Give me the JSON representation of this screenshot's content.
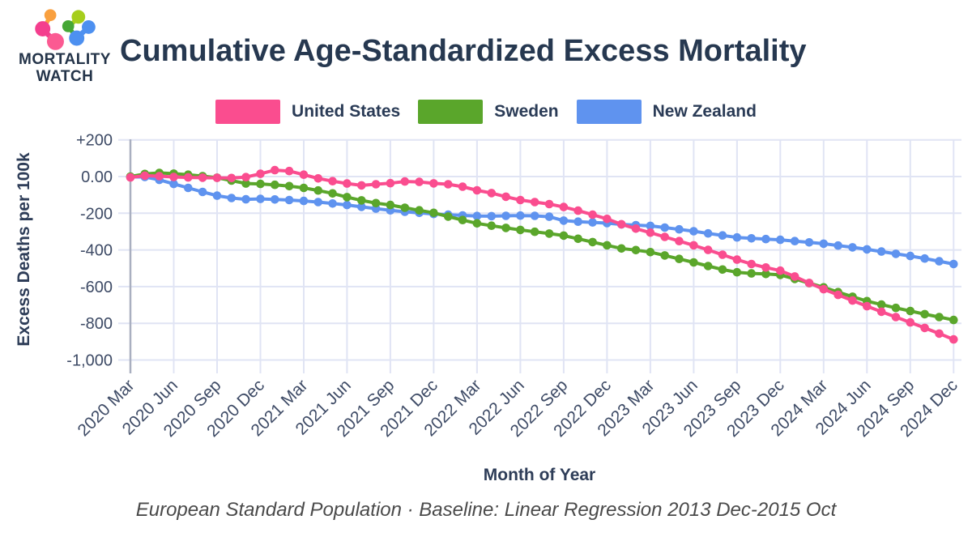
{
  "logo": {
    "line1": "MORTALITY",
    "line2": "WATCH"
  },
  "header": {
    "title": "Cumulative Age-Standardized Excess Mortality"
  },
  "footer": {
    "note": "European Standard Population · Baseline: Linear Regression 2013 Dec-2015 Oct"
  },
  "chart_data": {
    "type": "line",
    "title": "Cumulative Age-Standardized Excess Mortality",
    "xlabel": "Month of Year",
    "ylabel": "Excess Deaths per 100k",
    "ylim": [
      -1000,
      200
    ],
    "grid": true,
    "legend_position": "top",
    "tick_every": 3,
    "ytick_values": [
      200,
      0,
      -200,
      -400,
      -600,
      -800,
      -1000
    ],
    "ytick_labels": [
      "+200",
      "0.00",
      "-200",
      "-400",
      "-600",
      "-800",
      "-1,000"
    ],
    "grid_color": "#E0E4F4",
    "axis_color": "#A9AFC0",
    "tick_color": "#3E4B66",
    "axis_title_color": "#2E3D58",
    "x": [
      "2020 Mar",
      "2020 Apr",
      "2020 May",
      "2020 Jun",
      "2020 Jul",
      "2020 Aug",
      "2020 Sep",
      "2020 Oct",
      "2020 Nov",
      "2020 Dec",
      "2021 Jan",
      "2021 Feb",
      "2021 Mar",
      "2021 Apr",
      "2021 May",
      "2021 Jun",
      "2021 Jul",
      "2021 Aug",
      "2021 Sep",
      "2021 Oct",
      "2021 Nov",
      "2021 Dec",
      "2022 Jan",
      "2022 Feb",
      "2022 Mar",
      "2022 Apr",
      "2022 May",
      "2022 Jun",
      "2022 Jul",
      "2022 Aug",
      "2022 Sep",
      "2022 Oct",
      "2022 Nov",
      "2022 Dec",
      "2023 Jan",
      "2023 Feb",
      "2023 Mar",
      "2023 Apr",
      "2023 May",
      "2023 Jun",
      "2023 Jul",
      "2023 Aug",
      "2023 Sep",
      "2023 Oct",
      "2023 Nov",
      "2023 Dec",
      "2024 Jan",
      "2024 Feb",
      "2024 Mar",
      "2024 Apr",
      "2024 May",
      "2024 Jun",
      "2024 Jul",
      "2024 Aug",
      "2024 Sep",
      "2024 Oct",
      "2024 Nov",
      "2024 Dec"
    ],
    "series": [
      {
        "name": "United States",
        "color": "#FA4D8F",
        "values": [
          -5,
          5,
          2,
          -2,
          -5,
          -6,
          -7,
          -8,
          -3,
          15,
          35,
          30,
          10,
          -10,
          -25,
          -38,
          -48,
          -42,
          -36,
          -27,
          -29,
          -37,
          -42,
          -55,
          -75,
          -90,
          -110,
          -128,
          -139,
          -150,
          -166,
          -186,
          -208,
          -231,
          -260,
          -284,
          -306,
          -329,
          -352,
          -375,
          -400,
          -426,
          -453,
          -477,
          -496,
          -513,
          -545,
          -580,
          -614,
          -645,
          -676,
          -707,
          -737,
          -766,
          -795,
          -825,
          -856,
          -888
        ]
      },
      {
        "name": "Sweden",
        "color": "#5AA62B",
        "values": [
          0,
          14,
          20,
          16,
          10,
          2,
          -6,
          -22,
          -38,
          -40,
          -45,
          -52,
          -62,
          -76,
          -92,
          -112,
          -130,
          -145,
          -155,
          -170,
          -184,
          -198,
          -218,
          -237,
          -255,
          -268,
          -280,
          -291,
          -301,
          -311,
          -322,
          -339,
          -357,
          -375,
          -392,
          -401,
          -412,
          -430,
          -449,
          -468,
          -488,
          -507,
          -522,
          -528,
          -531,
          -536,
          -558,
          -581,
          -604,
          -630,
          -655,
          -679,
          -698,
          -716,
          -733,
          -750,
          -766,
          -782
        ]
      },
      {
        "name": "New Zealand",
        "color": "#5F93EF",
        "values": [
          -2,
          -2,
          -18,
          -40,
          -62,
          -84,
          -104,
          -117,
          -124,
          -122,
          -125,
          -128,
          -133,
          -139,
          -147,
          -155,
          -165,
          -175,
          -184,
          -192,
          -198,
          -204,
          -208,
          -212,
          -215,
          -216,
          -214,
          -213,
          -214,
          -219,
          -240,
          -246,
          -250,
          -254,
          -261,
          -265,
          -269,
          -278,
          -288,
          -298,
          -310,
          -321,
          -332,
          -337,
          -341,
          -345,
          -352,
          -359,
          -366,
          -376,
          -386,
          -397,
          -409,
          -421,
          -433,
          -447,
          -462,
          -477
        ]
      }
    ]
  }
}
